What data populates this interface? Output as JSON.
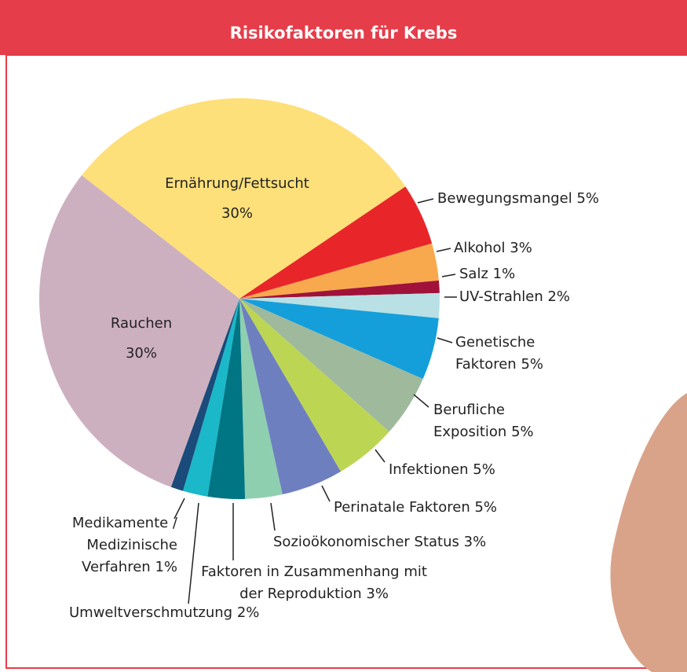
{
  "chart_data": {
    "type": "pie",
    "title": "Risikofaktoren für Krebs",
    "categories": [
      "Ernährung/Fettsucht",
      "Bewegungsmangel",
      "Alkohol",
      "Salz",
      "UV-Strahlen",
      "Genetische Faktoren",
      "Berufliche Exposition",
      "Infektionen",
      "Perinatale Faktoren",
      "Sozioökonomischer Status",
      "Faktoren in Zusammenhang mit der Reproduktion",
      "Umweltverschmutzung",
      "Medikamente / Medizinische Verfahren",
      "Rauchen"
    ],
    "values": [
      30,
      5,
      3,
      1,
      2,
      5,
      5,
      5,
      5,
      3,
      3,
      2,
      1,
      30
    ],
    "value_labels": [
      "30%",
      "5%",
      "3%",
      "1%",
      "2%",
      "5%",
      "5%",
      "5%",
      "5%",
      "3%",
      "3%",
      "2%",
      "1%",
      "30%"
    ],
    "colors": [
      "#fde07a",
      "#e8262a",
      "#f8a94e",
      "#a0123a",
      "#b9e0e5",
      "#149fdb",
      "#9fb99d",
      "#bcd654",
      "#6e7fc0",
      "#8ecfb0",
      "#007583",
      "#1ab8c9",
      "#1a4b7a",
      "#cdb0c0"
    ]
  }
}
